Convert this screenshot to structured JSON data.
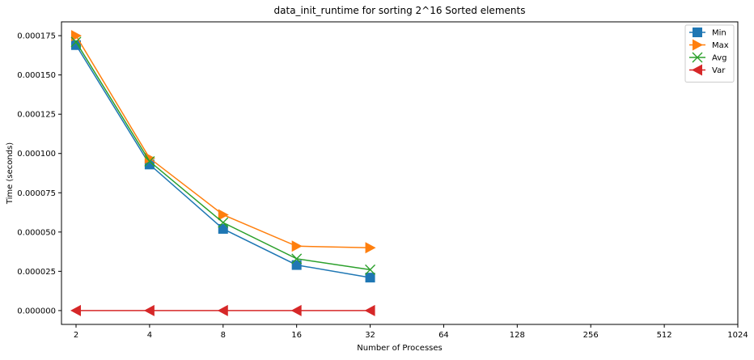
{
  "chart_data": {
    "type": "line",
    "title": "data_init_runtime for sorting 2^16 Sorted elements",
    "xlabel": "Number of Processes",
    "ylabel": "Time (seconds)",
    "x_scale": "log2",
    "x_ticks": [
      2,
      4,
      8,
      16,
      32,
      64,
      128,
      256,
      512,
      1024
    ],
    "x_tick_labels": [
      "2",
      "4",
      "8",
      "16",
      "32",
      "64",
      "128",
      "256",
      "512",
      "1024"
    ],
    "xlim": [
      2,
      1024
    ],
    "y_ticks": [
      0,
      2.5e-05,
      5e-05,
      7.5e-05,
      0.0001,
      0.000125,
      0.00015,
      0.000175
    ],
    "y_tick_labels": [
      "0.000000",
      "0.000025",
      "0.000050",
      "0.000075",
      "0.000100",
      "0.000125",
      "0.000150",
      "0.000175"
    ],
    "ylim": [
      -8.8e-06,
      0.0001838
    ],
    "grid": false,
    "legend_position": "top-right",
    "x": [
      2,
      4,
      8,
      16,
      32
    ],
    "series": [
      {
        "name": "Min",
        "marker": "square",
        "color": "#1f77b4",
        "values": [
          0.000169,
          9.3e-05,
          5.2e-05,
          2.9e-05,
          2.1e-05
        ]
      },
      {
        "name": "Max",
        "marker": "triangle-right",
        "color": "#ff7f0e",
        "values": [
          0.000175,
          9.7e-05,
          6.1e-05,
          4.1e-05,
          4e-05
        ]
      },
      {
        "name": "Avg",
        "marker": "x",
        "color": "#2ca02c",
        "values": [
          0.000171,
          9.5e-05,
          5.6e-05,
          3.3e-05,
          2.6e-05
        ]
      },
      {
        "name": "Var",
        "marker": "triangle-left",
        "color": "#d62728",
        "values": [
          0,
          0,
          0,
          0,
          0
        ]
      }
    ]
  }
}
